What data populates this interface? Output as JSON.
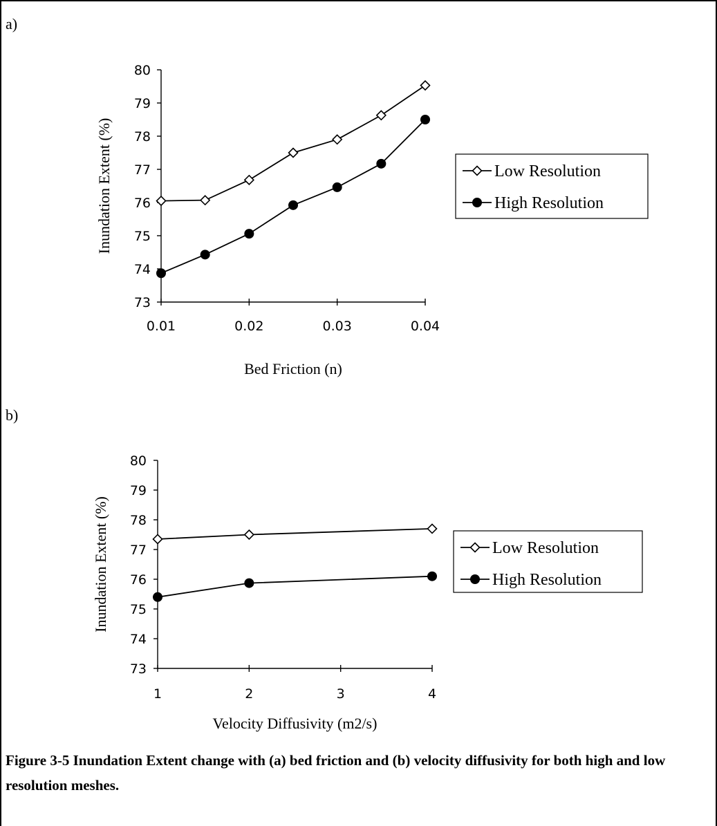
{
  "panels": {
    "a_label": "a)",
    "b_label": "b)"
  },
  "caption": "Figure 3-5 Inundation Extent change with (a) bed friction and (b) velocity diffusivity for both high and low resolution meshes.",
  "chart_data": [
    {
      "type": "line",
      "panel": "a)",
      "xlabel": "Bed Friction (n)",
      "ylabel": "Inundation Extent (%)",
      "ylim": [
        73,
        80
      ],
      "yticks": [
        "73",
        "74",
        "75",
        "76",
        "77",
        "78",
        "79",
        "80"
      ],
      "xlim": [
        0.01,
        0.04
      ],
      "xticks": [
        "0.01",
        "0.02",
        "0.03",
        "0.04"
      ],
      "x": [
        0.01,
        0.015,
        0.02,
        0.025,
        0.03,
        0.035,
        0.04
      ],
      "series": [
        {
          "name": "Low Resolution",
          "marker": "open-diamond",
          "values": [
            76.05,
            76.07,
            76.68,
            77.5,
            77.9,
            78.63,
            79.53
          ]
        },
        {
          "name": "High Resolution",
          "marker": "filled-circle",
          "values": [
            73.87,
            74.43,
            75.06,
            75.92,
            76.46,
            77.17,
            78.5
          ]
        }
      ],
      "legend_position": "right",
      "grid": false
    },
    {
      "type": "line",
      "panel": "b)",
      "xlabel": "Velocity Diffusivity (m2/s)",
      "ylabel": "Inundation Extent (%)",
      "ylim": [
        73,
        80
      ],
      "yticks": [
        "73",
        "74",
        "75",
        "76",
        "77",
        "78",
        "79",
        "80"
      ],
      "xlim": [
        1,
        4
      ],
      "xticks": [
        "1",
        "2",
        "3",
        "4"
      ],
      "x": [
        1,
        2,
        4
      ],
      "series": [
        {
          "name": "Low Resolution",
          "marker": "open-diamond",
          "values": [
            77.35,
            77.5,
            77.7
          ]
        },
        {
          "name": "High Resolution",
          "marker": "filled-circle",
          "values": [
            75.4,
            75.87,
            76.1
          ]
        }
      ],
      "legend_position": "right",
      "grid": false
    }
  ]
}
